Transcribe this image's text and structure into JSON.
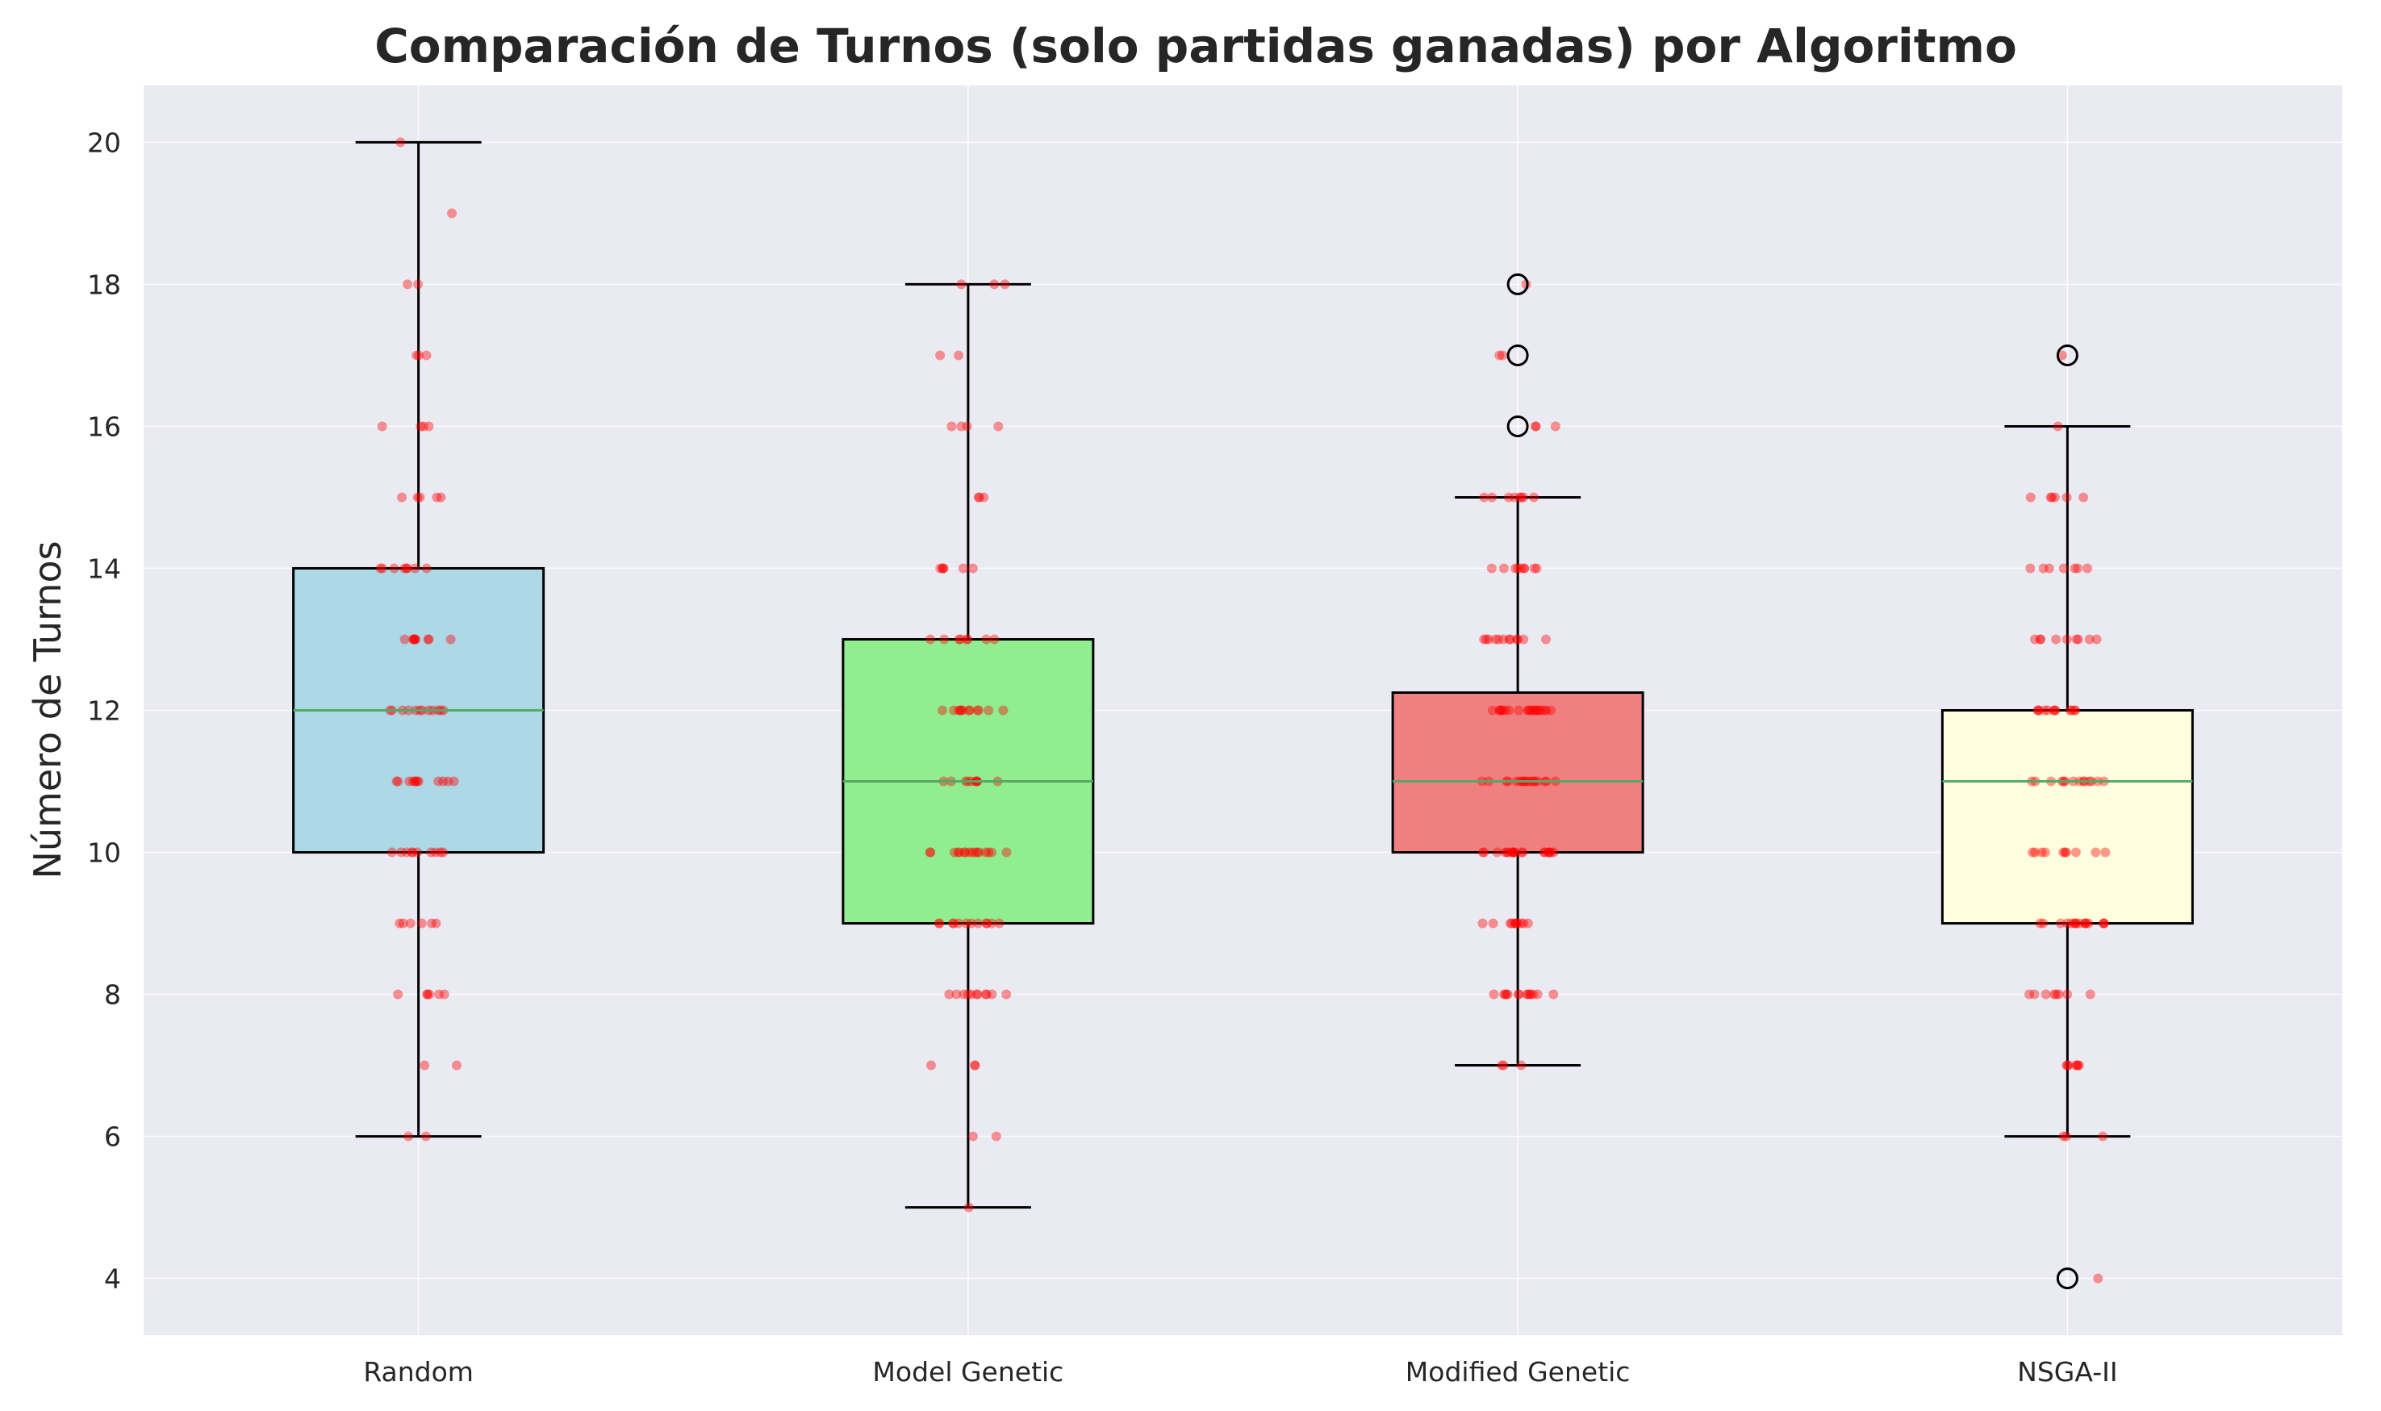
{
  "chart_data": {
    "type": "boxplot",
    "title": "Comparación de Turnos (solo partidas ganadas) por Algoritmo",
    "xlabel": "",
    "ylabel": "Número de Turnos",
    "ylim": [
      3.2,
      20.8
    ],
    "yticks": [
      4,
      6,
      8,
      10,
      12,
      14,
      16,
      18,
      20
    ],
    "grid": true,
    "background": "#eaeaf2",
    "gridColor": "#ffffff",
    "medianColor": "#55a868",
    "pointColor": "#ff0000",
    "categories": [
      "Random",
      "Model Genetic",
      "Modified Genetic",
      "NSGA-II"
    ],
    "boxes": [
      {
        "name": "Random",
        "color": "#add8e6",
        "whisker_low": 6,
        "q1": 10,
        "median": 12,
        "q3": 14,
        "whisker_high": 20,
        "outliers": [],
        "points": {
          "6": 2,
          "7": 2,
          "8": 6,
          "9": 6,
          "10": 10,
          "11": 12,
          "12": 12,
          "13": 9,
          "14": 8,
          "15": 5,
          "16": 4,
          "17": 3,
          "18": 2,
          "19": 1,
          "20": 1
        }
      },
      {
        "name": "Model Genetic",
        "color": "#90ee90",
        "whisker_low": 5,
        "q1": 9,
        "median": 11,
        "q3": 13,
        "whisker_high": 18,
        "outliers": [],
        "points": {
          "5": 1,
          "6": 2,
          "7": 3,
          "8": 11,
          "9": 12,
          "10": 16,
          "11": 10,
          "12": 12,
          "13": 8,
          "14": 6,
          "15": 3,
          "16": 4,
          "17": 2,
          "18": 3
        }
      },
      {
        "name": "Modified Genetic",
        "color": "#f08080",
        "whisker_low": 7,
        "q1": 10,
        "median": 11,
        "q3": 12.25,
        "whisker_high": 15,
        "outliers": [
          16,
          17,
          18
        ],
        "points": {
          "7": 3,
          "8": 14,
          "9": 11,
          "10": 20,
          "11": 18,
          "12": 20,
          "13": 12,
          "14": 9,
          "15": 8,
          "16": 3,
          "17": 2,
          "18": 1
        }
      },
      {
        "name": "NSGA-II",
        "color": "#ffffe0",
        "whisker_low": 6,
        "q1": 9,
        "median": 11,
        "q3": 12,
        "whisker_high": 16,
        "outliers": [
          4,
          17
        ],
        "points": {
          "4": 1,
          "6": 3,
          "7": 7,
          "8": 8,
          "9": 16,
          "10": 10,
          "11": 14,
          "12": 12,
          "13": 9,
          "14": 7,
          "15": 6,
          "16": 1,
          "17": 1
        }
      }
    ]
  }
}
